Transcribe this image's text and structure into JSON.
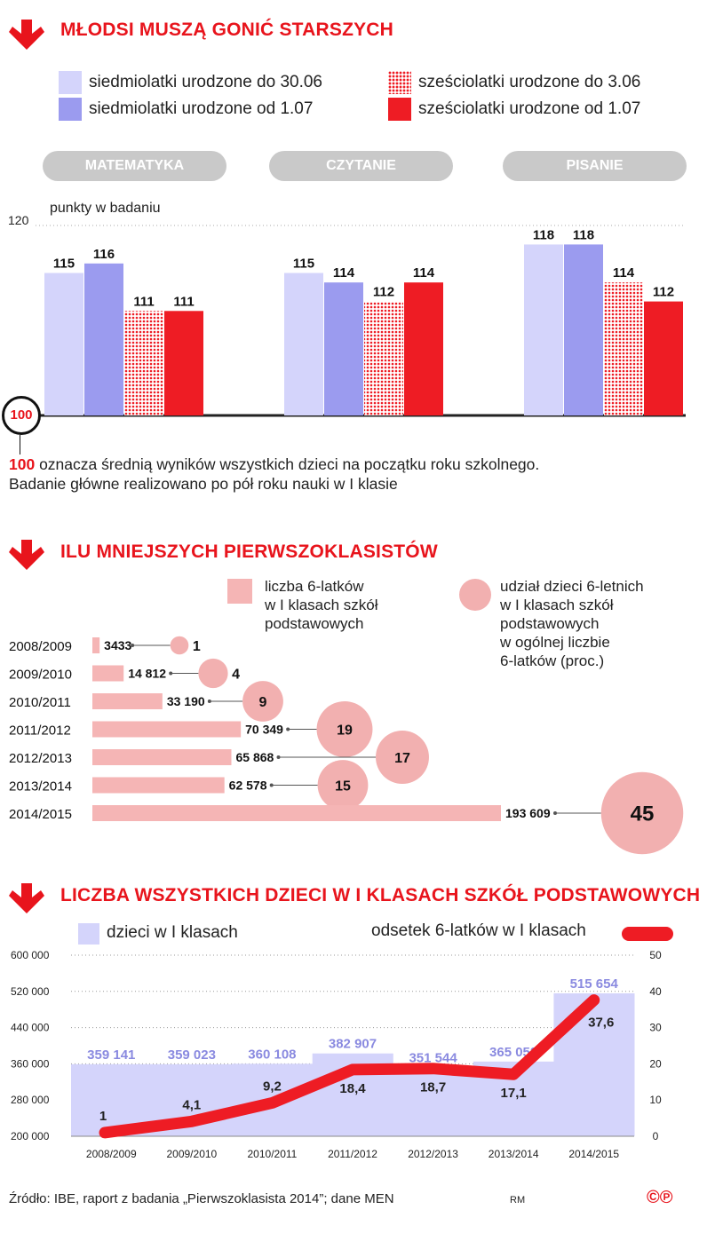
{
  "section1": {
    "title": "MŁODSI MUSZĄ GONIĆ STARSZYCH",
    "legend": [
      {
        "label": "siedmiolatki urodzone do 30.06",
        "color": "#d4d4fb",
        "pattern": "solid"
      },
      {
        "label": "siedmiolatki urodzone od 1.07",
        "color": "#9b9bef",
        "pattern": "solid"
      },
      {
        "label": "sześciolatki urodzone do 3.06",
        "color": "#ef4444",
        "pattern": "dotted"
      },
      {
        "label": "sześciolatki urodzone od 1.07",
        "color": "#ee1c24",
        "pattern": "solid"
      }
    ],
    "ylabel": "punkty w badaniu",
    "y_max_label": "120",
    "baseline_label": "100",
    "note_highlight": "100",
    "note_line1": "oznacza średnią wyników wszystkich dzieci na początku roku szkolnego.",
    "note_line2": "Badanie główne realizowano po pół roku nauki w I klasie"
  },
  "chart_data": [
    {
      "type": "bar",
      "ylabel": "punkty w badaniu",
      "ylim": [
        100,
        120
      ],
      "categories": [
        "MATEMATYKA",
        "CZYTANIE",
        "PISANIE"
      ],
      "series": [
        {
          "name": "siedmiolatki urodzone do 30.06",
          "values": [
            115,
            115,
            118
          ],
          "labels": [
            "115",
            "115",
            "118"
          ]
        },
        {
          "name": "siedmiolatki urodzone od 1.07",
          "values": [
            116,
            114,
            118
          ],
          "labels": [
            "116",
            "114",
            "118"
          ]
        },
        {
          "name": "sześciolatki urodzone do 3.06",
          "values": [
            111,
            112,
            114
          ],
          "labels": [
            "111",
            "112",
            "114"
          ]
        },
        {
          "name": "sześciolatki urodzone od 1.07",
          "values": [
            111,
            114,
            112
          ],
          "labels": [
            "111",
            "114",
            "112"
          ]
        }
      ]
    },
    {
      "type": "bar",
      "title": "ILU MNIEJSZYCH PIERWSZOKLASISTÓW",
      "categories": [
        "2008/2009",
        "2009/2010",
        "2010/2011",
        "2011/2012",
        "2012/2013",
        "2013/2014",
        "2014/2015"
      ],
      "series": [
        {
          "name": "liczba 6-latków w I klasach szkół podstawowych",
          "values": [
            3433,
            14812,
            33190,
            70349,
            65868,
            62578,
            193609
          ],
          "labels": [
            "3433",
            "14 812",
            "33 190",
            "70 349",
            "65 868",
            "62 578",
            "193 609"
          ]
        },
        {
          "name": "udział dzieci 6-letnich w I klasach szkół podstawowych w ogólnej liczbie 6-latków (proc.)",
          "values": [
            1,
            4,
            9,
            19,
            17,
            15,
            45
          ],
          "labels": [
            "1",
            "4",
            "9",
            "19",
            "17",
            "15",
            "45"
          ]
        }
      ]
    },
    {
      "type": "bar",
      "title": "LICZBA WSZYSTKICH DZIECI W I KLASACH SZKÓŁ PODSTAWOWYCH",
      "categories": [
        "2008/2009",
        "2009/2010",
        "2010/2011",
        "2011/2012",
        "2012/2013",
        "2013/2014",
        "2014/2015"
      ],
      "ylim": [
        200000,
        600000
      ],
      "y_ticks": [
        "600 000",
        "520 000",
        "440 000",
        "360 000",
        "280 000",
        "200 000"
      ],
      "y2lim": [
        0,
        50
      ],
      "y2_ticks": [
        "50",
        "40",
        "30",
        "20",
        "10",
        "0"
      ],
      "series": [
        {
          "name": "dzieci w I klasach",
          "values": [
            359141,
            359023,
            360108,
            382907,
            351544,
            365052,
            515654
          ],
          "labels": [
            "359 141",
            "359 023",
            "360 108",
            "382 907",
            "351 544",
            "365 052",
            "515 654"
          ]
        },
        {
          "name": "odsetek 6-latków w I klasach",
          "values": [
            1,
            4.1,
            9.2,
            18.4,
            18.7,
            17.1,
            37.6
          ],
          "labels": [
            "1",
            "4,1",
            "9,2",
            "18,4",
            "18,7",
            "17,1",
            "37,6"
          ]
        }
      ]
    }
  ],
  "section2": {
    "title": "ILU MNIEJSZYCH PIERWSZOKLASISTÓW",
    "legend_bar": [
      "liczba 6-latków",
      "w I klasach szkół",
      "podstawowych"
    ],
    "legend_circle": [
      "udział dzieci 6-letnich",
      "w I klasach szkół",
      "podstawowych",
      "w ogólnej liczbie",
      "6-latków (proc.)"
    ],
    "bar_color": "#f5b5b5",
    "circle_color": "#f2b0b0"
  },
  "section3": {
    "title": "LICZBA WSZYSTKICH DZIECI W I KLASACH SZKÓŁ PODSTAWOWYCH",
    "legend_area": "dzieci w I klasach",
    "legend_line": "odsetek 6-latków w I klasach",
    "area_color": "#d4d4fb",
    "line_color": "#ee1c24",
    "label_color": "#8a8ae0"
  },
  "footer": {
    "source": "Źródło: IBE, raport z badania „Pierwszoklasista 2014”; dane MEN",
    "initials": "RM",
    "logo": "©℗"
  }
}
